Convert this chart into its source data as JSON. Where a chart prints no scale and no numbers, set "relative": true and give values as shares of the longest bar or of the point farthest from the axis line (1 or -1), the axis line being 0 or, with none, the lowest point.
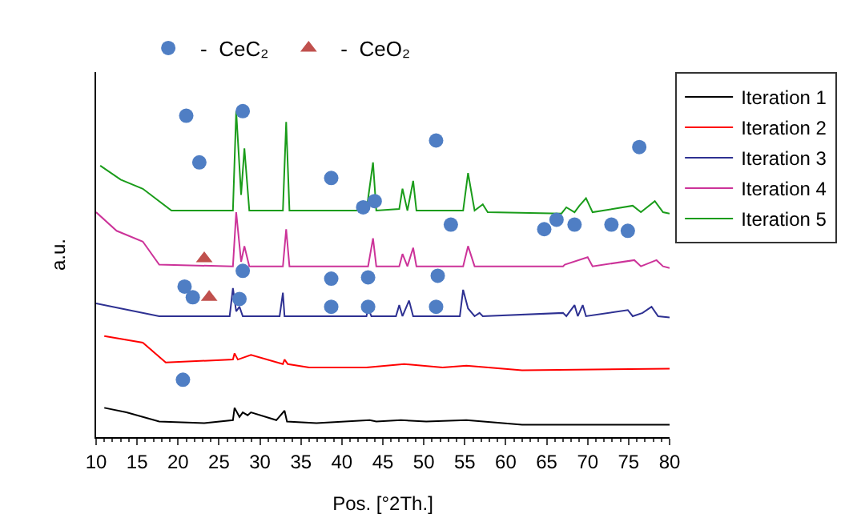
{
  "chart_data": {
    "type": "line",
    "relative": true,
    "xlabel": "Pos. [°2Th.]",
    "ylabel": "a.u.",
    "xlim": [
      10,
      80
    ],
    "xticks": [
      10,
      15,
      20,
      25,
      30,
      35,
      40,
      45,
      50,
      55,
      60,
      65,
      70,
      75,
      80
    ],
    "tick_labels": "x",
    "legend": "top right",
    "marker": "none",
    "line_style": "solid",
    "series": [
      {
        "name": "Iteration 1",
        "color": "#000000",
        "x": [
          11,
          13.7,
          17.7,
          23.2,
          26.7,
          26.9,
          27.5,
          27.9,
          28.5,
          28.9,
          32.0,
          33.0,
          33.3,
          36.9,
          43.4,
          44.2,
          47.2,
          50.3,
          55.2,
          62,
          80
        ],
        "values": [
          0.09,
          0.076,
          0.048,
          0.043,
          0.052,
          0.09,
          0.062,
          0.076,
          0.067,
          0.076,
          0.052,
          0.081,
          0.048,
          0.043,
          0.052,
          0.048,
          0.052,
          0.048,
          0.052,
          0.038,
          0.038
        ]
      },
      {
        "name": "Iteration 2",
        "color": "#ff0000",
        "x": [
          11,
          15.7,
          18.5,
          26.7,
          26.9,
          27.3,
          28.9,
          32.8,
          33.0,
          33.4,
          36,
          43.0,
          47.6,
          52.3,
          55.2,
          62,
          80
        ],
        "values": [
          0.31,
          0.29,
          0.229,
          0.238,
          0.257,
          0.238,
          0.252,
          0.224,
          0.238,
          0.224,
          0.214,
          0.214,
          0.224,
          0.214,
          0.219,
          0.205,
          0.21
        ]
      },
      {
        "name": "Iteration 3",
        "color": "#2e3192",
        "x": [
          10,
          13,
          17.7,
          26.3,
          26.7,
          27.1,
          27.5,
          27.9,
          32.4,
          32.8,
          33.0,
          43.0,
          43.2,
          43.6,
          46.6,
          47.0,
          47.4,
          48.2,
          48.7,
          54.4,
          54.8,
          55.4,
          56.2,
          56.8,
          57.2,
          67.0,
          67.4,
          68.4,
          68.8,
          69.4,
          69.8,
          74.9,
          75.5,
          76.7,
          77.8,
          78.6,
          80
        ],
        "values": [
          0.41,
          0.395,
          0.371,
          0.371,
          0.457,
          0.386,
          0.4,
          0.371,
          0.371,
          0.443,
          0.371,
          0.371,
          0.395,
          0.371,
          0.371,
          0.405,
          0.371,
          0.419,
          0.371,
          0.371,
          0.452,
          0.395,
          0.371,
          0.381,
          0.371,
          0.381,
          0.371,
          0.405,
          0.371,
          0.405,
          0.371,
          0.39,
          0.371,
          0.381,
          0.4,
          0.371,
          0.367
        ]
      },
      {
        "name": "Iteration 4",
        "color": "#cc3399",
        "x": [
          10,
          12.5,
          15.7,
          17.7,
          26.7,
          27.1,
          27.7,
          28.1,
          28.7,
          32.8,
          33.2,
          33.6,
          43.2,
          43.8,
          44.2,
          47.0,
          47.4,
          48.0,
          48.7,
          49.1,
          54.8,
          55.4,
          56.2,
          57.2,
          67.0,
          67.2,
          70.0,
          70.6,
          75.7,
          76.5,
          78.4,
          79.2,
          80
        ],
        "values": [
          0.69,
          0.633,
          0.6,
          0.529,
          0.524,
          0.69,
          0.538,
          0.586,
          0.524,
          0.524,
          0.638,
          0.524,
          0.524,
          0.61,
          0.524,
          0.524,
          0.562,
          0.524,
          0.581,
          0.524,
          0.524,
          0.586,
          0.524,
          0.524,
          0.524,
          0.529,
          0.552,
          0.524,
          0.543,
          0.524,
          0.543,
          0.524,
          0.519
        ]
      },
      {
        "name": "Iteration 5",
        "color": "#1a9c1a",
        "x": [
          10.5,
          13.0,
          15.7,
          19.2,
          26.7,
          27.1,
          27.7,
          28.1,
          28.7,
          32.8,
          33.2,
          33.6,
          43.0,
          43.8,
          44.2,
          47.0,
          47.4,
          48.0,
          48.7,
          49.1,
          54.8,
          55.4,
          56.2,
          57.2,
          57.8,
          66.8,
          67.4,
          68.4,
          69.0,
          69.8,
          70.6,
          75.5,
          76.5,
          78.2,
          79.2,
          80
        ],
        "values": [
          0.833,
          0.79,
          0.762,
          0.695,
          0.695,
          1.0,
          0.743,
          0.886,
          0.695,
          0.695,
          0.967,
          0.695,
          0.695,
          0.843,
          0.695,
          0.7,
          0.762,
          0.695,
          0.786,
          0.695,
          0.695,
          0.81,
          0.695,
          0.714,
          0.69,
          0.686,
          0.705,
          0.69,
          0.71,
          0.733,
          0.69,
          0.71,
          0.69,
          0.724,
          0.69,
          0.686
        ]
      },
      {
        "type": "scatter",
        "name": "-  CeC₂",
        "color": "#4f7ec4",
        "marker": "circle",
        "x": [
          21.0,
          22.6,
          27.9,
          38.7,
          42.6,
          44.0,
          51.5,
          53.3,
          64.7,
          66.2,
          68.4,
          72.9,
          74.9,
          76.3,
          27.9,
          20.8,
          21.8,
          27.5,
          38.7,
          43.2,
          51.7,
          38.7,
          43.2,
          51.5,
          20.6
        ],
        "values": [
          0.986,
          0.843,
          1.0,
          0.795,
          0.705,
          0.724,
          0.91,
          0.652,
          0.638,
          0.667,
          0.652,
          0.652,
          0.633,
          0.89,
          0.51,
          0.462,
          0.429,
          0.424,
          0.486,
          0.49,
          0.495,
          0.4,
          0.4,
          0.4,
          0.176
        ]
      },
      {
        "type": "scatter",
        "name": "-  CeO₂",
        "color": "#c0504d",
        "marker": "triangle",
        "x": [
          23.2,
          23.8
        ],
        "values": [
          0.548,
          0.429
        ]
      }
    ]
  }
}
